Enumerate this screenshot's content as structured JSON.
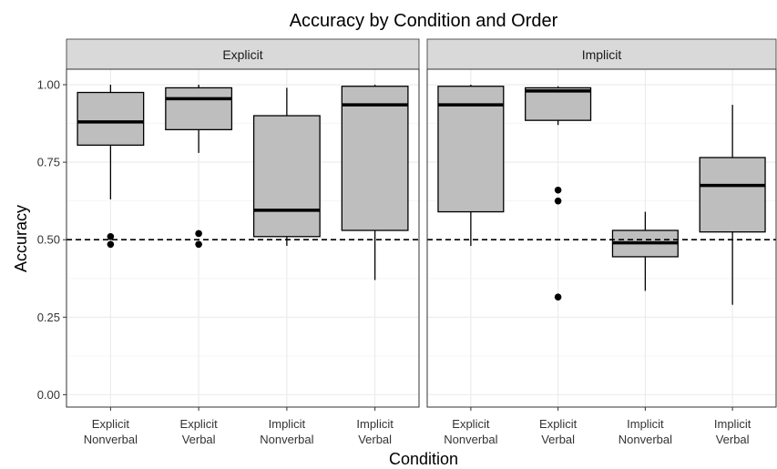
{
  "chart_data": {
    "type": "box",
    "title": "Accuracy by Condition and Order",
    "xlabel": "Condition",
    "ylabel": "Accuracy",
    "ylim": [
      -0.04,
      1.05
    ],
    "y_ticks": [
      "0.00",
      "0.25",
      "0.50",
      "0.75",
      "1.00"
    ],
    "y_tick_values": [
      0,
      0.25,
      0.5,
      0.75,
      1.0
    ],
    "reference_line": {
      "y": 0.5,
      "style": "dashed"
    },
    "grid": true,
    "categories": [
      {
        "line1": "Explicit",
        "line2": "Nonverbal"
      },
      {
        "line1": "Explicit",
        "line2": "Verbal"
      },
      {
        "line1": "Implicit",
        "line2": "Nonverbal"
      },
      {
        "line1": "Implicit",
        "line2": "Verbal"
      }
    ],
    "panels": [
      {
        "label": "Explicit",
        "boxes": [
          {
            "whisker_low": 0.63,
            "q1": 0.805,
            "median": 0.88,
            "q3": 0.975,
            "whisker_high": 1.0,
            "outliers": [
              0.51,
              0.485
            ]
          },
          {
            "whisker_low": 0.78,
            "q1": 0.855,
            "median": 0.955,
            "q3": 0.99,
            "whisker_high": 1.0,
            "outliers": [
              0.52,
              0.485
            ]
          },
          {
            "whisker_low": 0.48,
            "q1": 0.51,
            "median": 0.595,
            "q3": 0.9,
            "whisker_high": 0.99,
            "outliers": []
          },
          {
            "whisker_low": 0.37,
            "q1": 0.53,
            "median": 0.935,
            "q3": 0.995,
            "whisker_high": 1.0,
            "outliers": []
          }
        ]
      },
      {
        "label": "Implicit",
        "boxes": [
          {
            "whisker_low": 0.48,
            "q1": 0.59,
            "median": 0.935,
            "q3": 0.995,
            "whisker_high": 1.0,
            "outliers": []
          },
          {
            "whisker_low": 0.87,
            "q1": 0.885,
            "median": 0.98,
            "q3": 0.99,
            "whisker_high": 0.995,
            "outliers": [
              0.66,
              0.625,
              0.315
            ]
          },
          {
            "whisker_low": 0.335,
            "q1": 0.445,
            "median": 0.49,
            "q3": 0.53,
            "whisker_high": 0.59,
            "outliers": []
          },
          {
            "whisker_low": 0.29,
            "q1": 0.525,
            "median": 0.675,
            "q3": 0.765,
            "whisker_high": 0.935,
            "outliers": []
          }
        ]
      }
    ],
    "colors": {
      "box_fill": "#bebebe",
      "strip_fill": "#d9d9d9",
      "grid_major": "#ebebeb",
      "grid_minor": "#f5f5f5",
      "panel_border": "#333333"
    }
  }
}
